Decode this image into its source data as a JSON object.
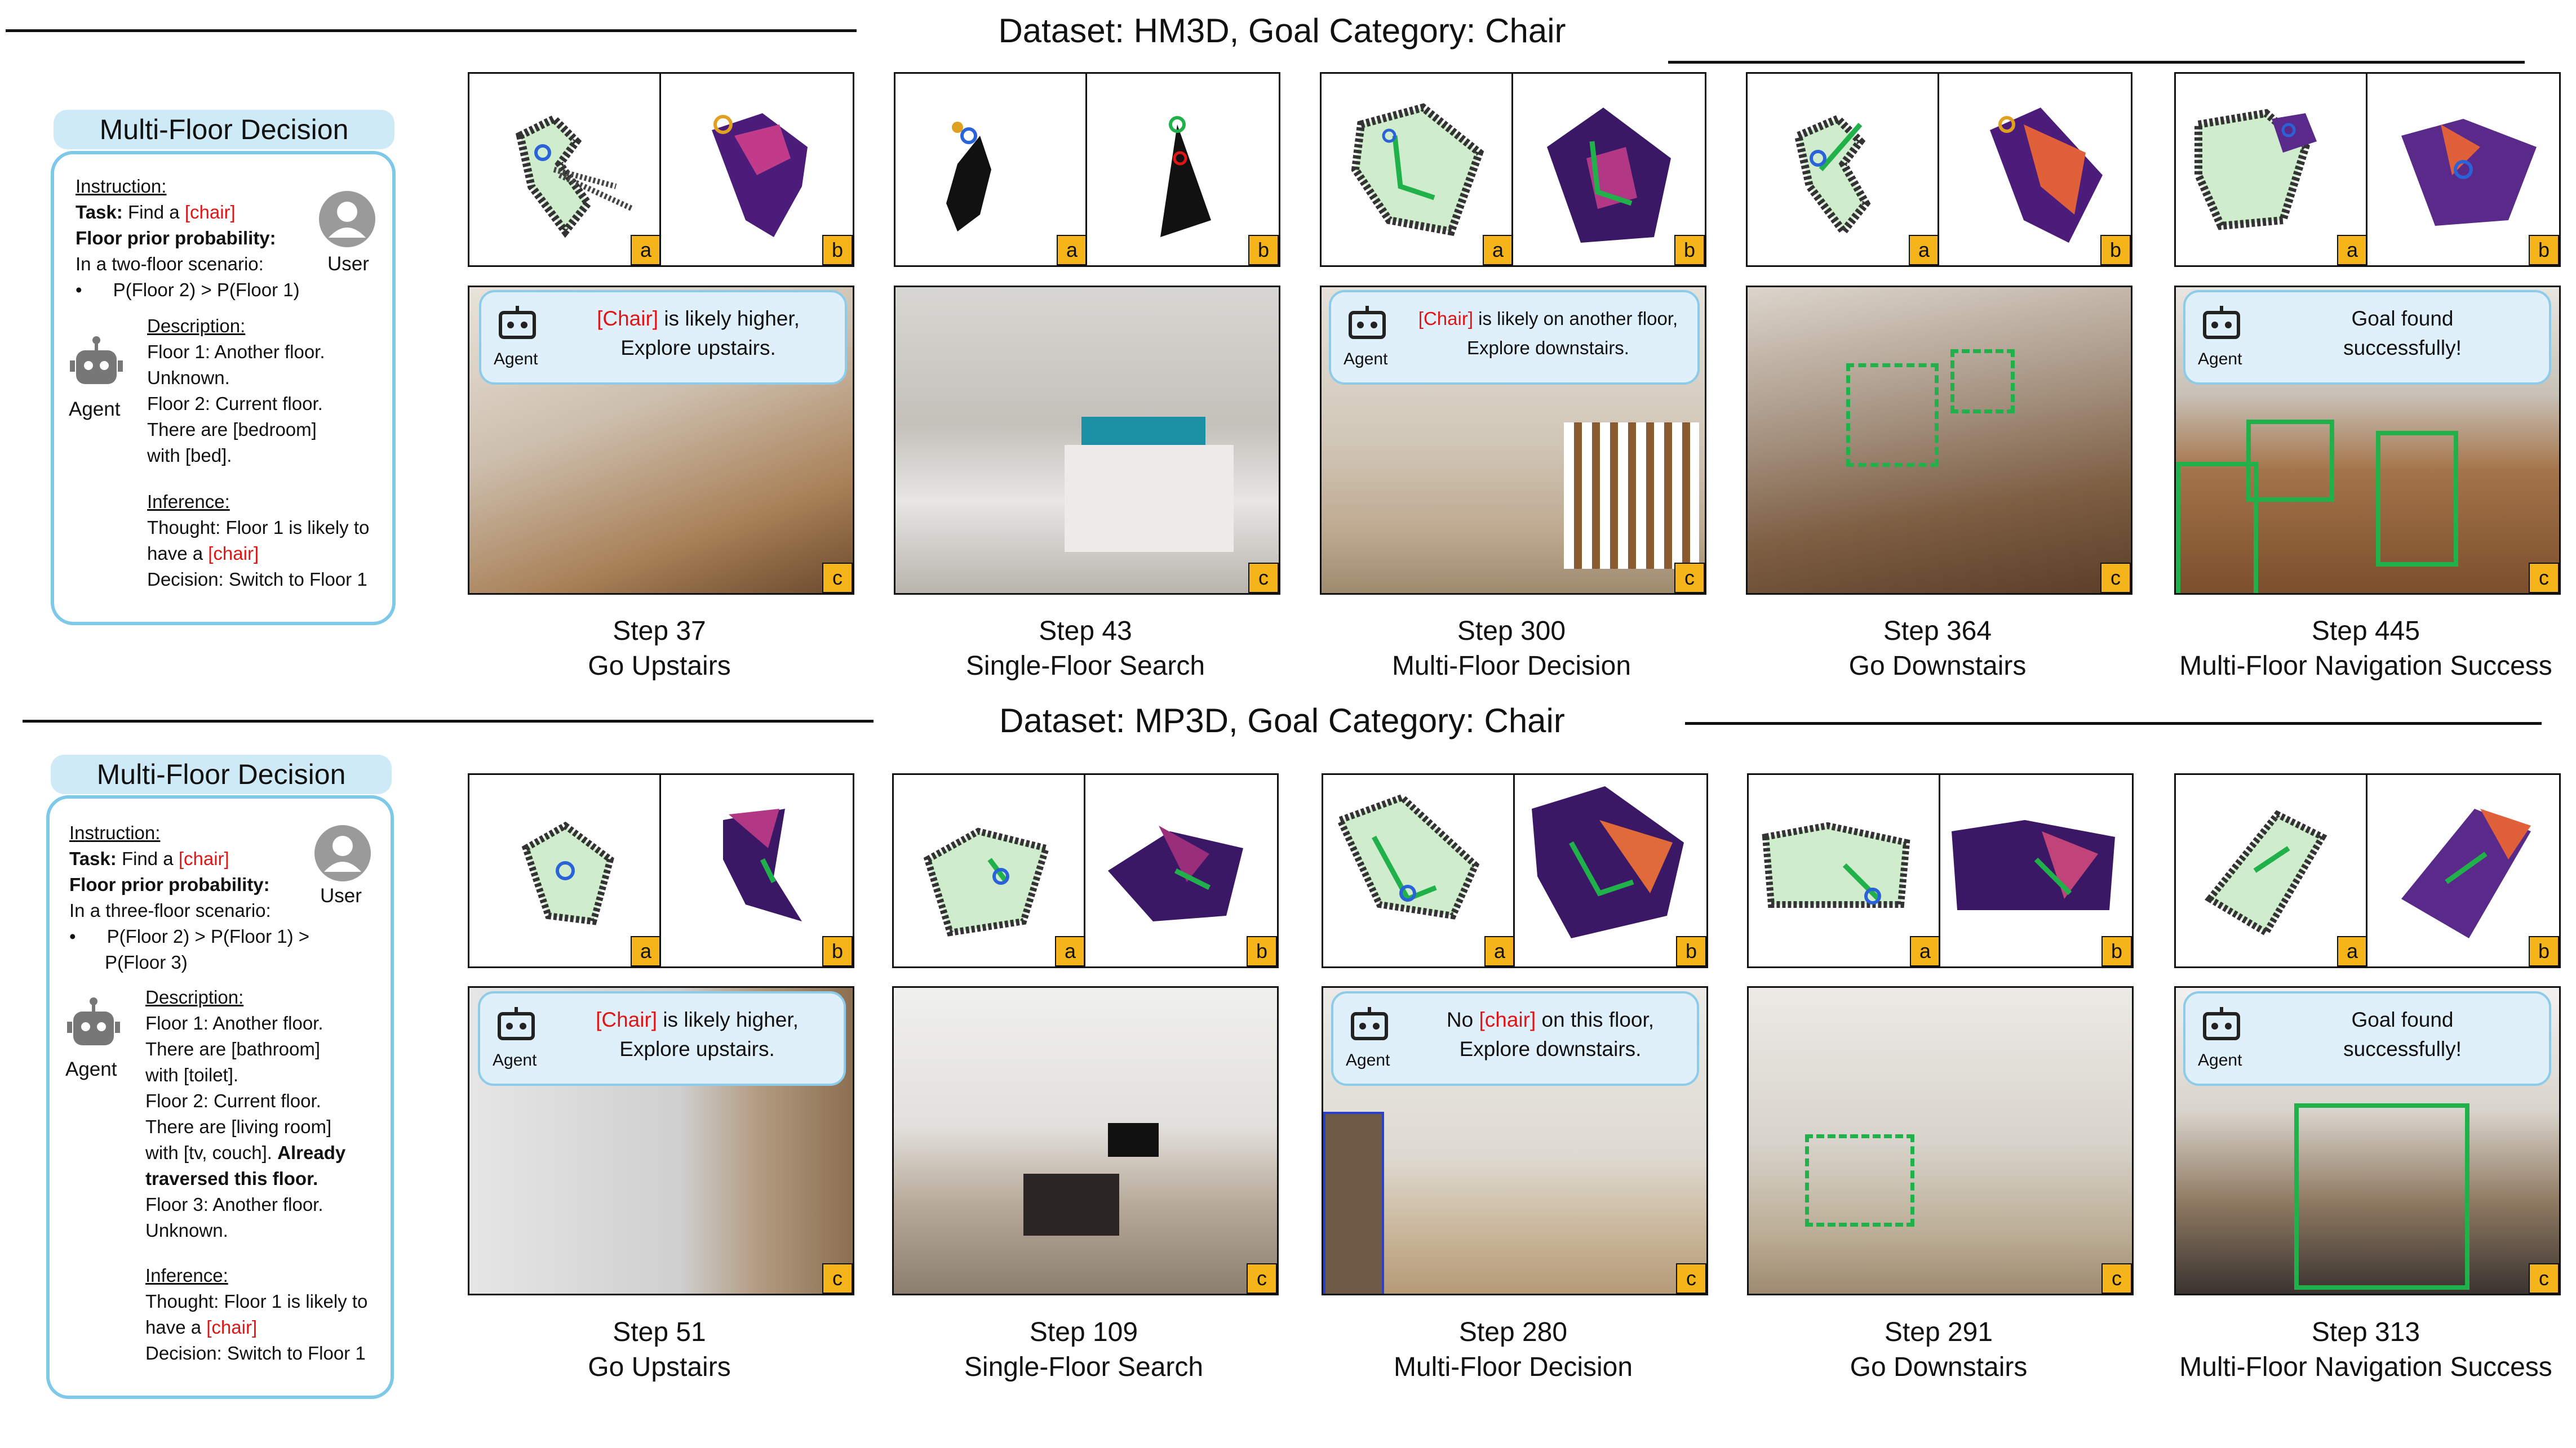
{
  "rows": [
    {
      "title": "Dataset: HM3D, Goal Category: Chair",
      "panel": {
        "tab": "Multi-Floor Decision",
        "instruction_label": "Instruction:",
        "task_label": "Task:",
        "task_text": "Find a",
        "goal": "[chair]",
        "prior_label": "Floor prior probability:",
        "scenario": "In a two-floor scenario:",
        "prior_lines": [
          "P(Floor 2) > P(Floor 1)"
        ],
        "user_label": "User",
        "agent_label": "Agent",
        "description_label": "Description:",
        "description_lines": [
          "Floor 1: Another floor.",
          "Unknown.",
          "Floor 2: Current floor.",
          "There are [bedroom]",
          "with [bed]."
        ],
        "inference_label": "Inference:",
        "thought_label": "Thought:",
        "thought_text": "Floor 1 is likely to",
        "thought_text2": "have a",
        "decision_label": "Decision:",
        "decision_text": "Switch to Floor 1"
      },
      "steps": [
        {
          "step": "Step 37",
          "caption": "Go Upstairs",
          "speech": {
            "highlight": "[Chair]",
            "line1": " is likely higher,",
            "line2": "Explore upstairs.",
            "agent": "Agent"
          }
        },
        {
          "step": "Step 43",
          "caption": "Single-Floor Search"
        },
        {
          "step": "Step 300",
          "caption": "Multi-Floor Decision",
          "speech": {
            "highlight": "[Chair]",
            "line1": " is likely on another floor,",
            "line2": "Explore downstairs.",
            "agent": "Agent"
          }
        },
        {
          "step": "Step 364",
          "caption": "Go Downstairs"
        },
        {
          "step": "Step 445",
          "caption": "Multi-Floor Navigation Success",
          "speech": {
            "highlight": "",
            "line1": "Goal found",
            "line2": "successfully!",
            "agent": "Agent"
          }
        }
      ]
    },
    {
      "title": "Dataset: MP3D, Goal Category: Chair",
      "panel": {
        "tab": "Multi-Floor Decision",
        "instruction_label": "Instruction:",
        "task_label": "Task:",
        "task_text": "Find a",
        "goal": "[chair]",
        "prior_label": "Floor prior probability:",
        "scenario": "In a three-floor scenario:",
        "prior_lines": [
          "P(Floor 2) > P(Floor 1) >",
          "P(Floor 3)"
        ],
        "user_label": "User",
        "agent_label": "Agent",
        "description_label": "Description:",
        "description_lines": [
          "Floor 1: Another floor.",
          "There are [bathroom]",
          "with [toilet].",
          "Floor 2: Current floor.",
          "There are [living room]",
          "with [tv, couch].",
          "traversed this floor.",
          "Floor 3: Another floor.",
          "Unknown."
        ],
        "already_text": "Already",
        "inference_label": "Inference:",
        "thought_label": "Thought:",
        "thought_text": "Floor 1 is likely to",
        "thought_text2": "have a",
        "decision_label": "Decision:",
        "decision_text": "Switch to Floor 1"
      },
      "steps": [
        {
          "step": "Step 51",
          "caption": "Go Upstairs",
          "speech": {
            "highlight": "[Chair]",
            "line1": " is likely higher,",
            "line2": "Explore upstairs.",
            "agent": "Agent"
          }
        },
        {
          "step": "Step 109",
          "caption": "Single-Floor Search"
        },
        {
          "step": "Step 280",
          "caption": "Multi-Floor Decision",
          "speech": {
            "pre": "No ",
            "highlight": "[chair]",
            "line1": " on this floor,",
            "line2": "Explore downstairs.",
            "agent": "Agent"
          }
        },
        {
          "step": "Step 291",
          "caption": "Go Downstairs"
        },
        {
          "step": "Step 313",
          "caption": "Multi-Floor Navigation Success",
          "speech": {
            "highlight": "",
            "line1": "Goal found",
            "line2": "successfully!",
            "agent": "Agent"
          }
        }
      ]
    }
  ],
  "tags": {
    "a": "a",
    "b": "b",
    "c": "c"
  },
  "colors": {
    "panel_border": "#7ec8ea",
    "tab_fill": "#cfeaf7",
    "highlight": "#e01515",
    "tag": "#f4b41a",
    "detect_box": "#21b14b"
  }
}
